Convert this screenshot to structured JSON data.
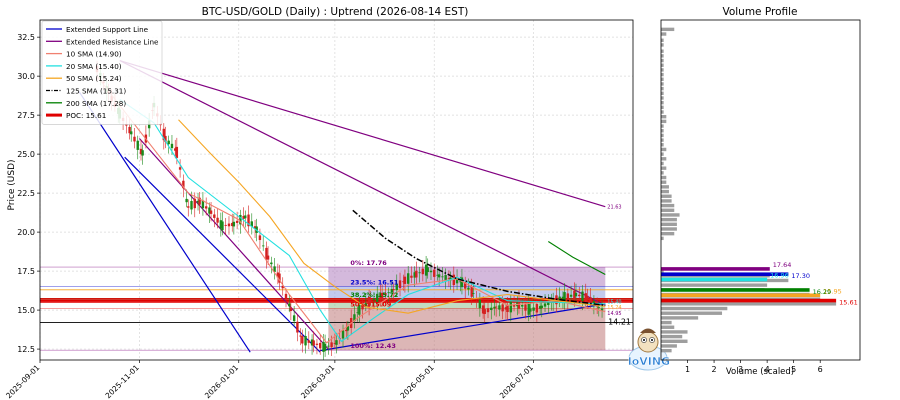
{
  "chart_data": [
    {
      "type": "line",
      "title": "BTC-USD/GOLD (Daily) : Uptrend (2026-08-14 EST)",
      "ylabel": "Price (USD)",
      "xlim": [
        "2025-09-01",
        "2026-08-31"
      ],
      "ylim": [
        11.8,
        33.6
      ],
      "yticks": [
        12.5,
        15.0,
        17.5,
        20.0,
        22.5,
        25.0,
        27.5,
        30.0,
        32.5
      ],
      "yticklabels": [
        "12.5",
        "15.0",
        "17.5",
        "20.0",
        "22.5",
        "25.0",
        "27.5",
        "30.0",
        "32.5"
      ],
      "xticks": [
        "2025-09-01",
        "2025-11-01",
        "2026-01-01",
        "2026-03-01",
        "2026-05-01",
        "2026-07-01"
      ],
      "grid": true,
      "legend_location": "upper-left",
      "legend": [
        {
          "label": "Extended Support Line",
          "color": "#0000cc",
          "style": "solid"
        },
        {
          "label": "Extended Resistance Line",
          "color": "#800080",
          "style": "solid"
        },
        {
          "label": "10 SMA (14.90)",
          "color": "#f08070",
          "style": "solid"
        },
        {
          "label": "20 SMA (15.40)",
          "color": "#22e0e0",
          "style": "solid"
        },
        {
          "label": "50 SMA (15.24)",
          "color": "#f5a623",
          "style": "solid"
        },
        {
          "label": "125 SMA (15.31)",
          "color": "#000000",
          "style": "dashdot"
        },
        {
          "label": "200 SMA (17.28)",
          "color": "#008000",
          "style": "solid"
        },
        {
          "label": "POC: 15.61",
          "color": "#e00000",
          "style": "solid-thick"
        }
      ],
      "series": [
        {
          "role": "close",
          "x": [
            "2025-10-06",
            "2025-10-13",
            "2025-10-20",
            "2025-10-27",
            "2025-11-03",
            "2025-11-10",
            "2025-11-17",
            "2025-11-24",
            "2025-12-01",
            "2025-12-08",
            "2025-12-15",
            "2025-12-22",
            "2025-12-29",
            "2026-01-05",
            "2026-01-12",
            "2026-01-19",
            "2026-01-26",
            "2026-02-02",
            "2026-02-09",
            "2026-02-16",
            "2026-02-23",
            "2026-03-02",
            "2026-03-09",
            "2026-03-16",
            "2026-03-23",
            "2026-03-30",
            "2026-04-06",
            "2026-04-13",
            "2026-04-20",
            "2026-04-27",
            "2026-05-04",
            "2026-05-11",
            "2026-05-18",
            "2026-05-25",
            "2026-06-01",
            "2026-06-08",
            "2026-06-15",
            "2026-06-22",
            "2026-06-29",
            "2026-07-06",
            "2026-07-13",
            "2026-07-20",
            "2026-07-27",
            "2026-08-03",
            "2026-08-10",
            "2026-08-14"
          ],
          "y": [
            30.5,
            29.0,
            27.6,
            26.4,
            25.0,
            28.2,
            26.0,
            25.2,
            21.6,
            22.0,
            21.3,
            20.4,
            20.5,
            21.0,
            20.2,
            18.4,
            17.1,
            15.1,
            13.1,
            12.9,
            12.6,
            12.9,
            13.8,
            15.0,
            15.6,
            15.9,
            16.3,
            16.9,
            17.3,
            17.6,
            17.2,
            17.0,
            16.8,
            16.1,
            14.9,
            15.2,
            15.1,
            15.4,
            15.0,
            15.2,
            15.6,
            15.8,
            16.0,
            15.8,
            15.2,
            14.9
          ]
        },
        {
          "name": "10 SMA (14.90)",
          "x": [
            "2025-10-06",
            "2025-11-01",
            "2025-12-01",
            "2026-01-01",
            "2026-02-01",
            "2026-02-24",
            "2026-03-15",
            "2026-04-15",
            "2026-05-15",
            "2026-06-15",
            "2026-07-15",
            "2026-08-14"
          ],
          "y": [
            30.0,
            26.5,
            22.5,
            20.8,
            16.0,
            12.9,
            14.5,
            16.6,
            17.0,
            15.3,
            15.6,
            14.9
          ]
        },
        {
          "name": "20 SMA (15.40)",
          "x": [
            "2025-10-20",
            "2025-11-10",
            "2025-12-01",
            "2026-01-01",
            "2026-02-01",
            "2026-02-20",
            "2026-03-05",
            "2026-03-25",
            "2026-04-15",
            "2026-05-15",
            "2026-06-15",
            "2026-07-15",
            "2026-08-14"
          ],
          "y": [
            28.5,
            27.0,
            23.5,
            21.0,
            18.5,
            15.0,
            13.0,
            14.5,
            16.0,
            17.1,
            15.6,
            15.5,
            15.4
          ]
        },
        {
          "name": "50 SMA (15.24)",
          "x": [
            "2025-11-25",
            "2025-12-15",
            "2026-01-01",
            "2026-01-20",
            "2026-02-10",
            "2026-03-01",
            "2026-03-20",
            "2026-04-15",
            "2026-05-15",
            "2026-06-15",
            "2026-07-15",
            "2026-08-14"
          ],
          "y": [
            27.2,
            25.0,
            23.2,
            21.0,
            18.0,
            16.5,
            15.2,
            14.8,
            15.6,
            16.0,
            15.6,
            15.24
          ]
        },
        {
          "name": "125 SMA (15.31)",
          "x": [
            "2026-03-12",
            "2026-04-01",
            "2026-04-20",
            "2026-05-15",
            "2026-06-15",
            "2026-07-15",
            "2026-08-14"
          ],
          "y": [
            21.4,
            19.6,
            18.3,
            17.0,
            16.2,
            15.7,
            15.31
          ]
        },
        {
          "name": "200 SMA (17.28)",
          "x": [
            "2026-07-10",
            "2026-07-25",
            "2026-08-14"
          ],
          "y": [
            19.4,
            18.4,
            17.28
          ]
        },
        {
          "name": "Extended Support Line",
          "x": [
            "2025-09-25",
            "2026-01-08"
          ],
          "y": [
            29.0,
            12.3
          ]
        },
        {
          "name": "Extended Support Line",
          "x": [
            "2025-10-23",
            "2026-02-20"
          ],
          "y": [
            24.8,
            12.3
          ]
        },
        {
          "name": "Extended Support Line",
          "x": [
            "2026-02-20",
            "2026-08-14"
          ],
          "y": [
            12.4,
            15.4
          ]
        },
        {
          "name": "Extended Resistance Line",
          "x": [
            "2025-10-20",
            "2026-08-14"
          ],
          "y": [
            31.0,
            21.63
          ]
        },
        {
          "name": "Extended Resistance Line",
          "x": [
            "2025-10-20",
            "2026-08-14"
          ],
          "y": [
            31.0,
            15.3
          ]
        },
        {
          "name": "Extended Resistance Line",
          "x": [
            "2025-11-01",
            "2026-02-25"
          ],
          "y": [
            26.0,
            12.5
          ]
        }
      ],
      "fib_levels": [
        {
          "label": "0%: 17.76",
          "value": 17.76,
          "color": "#800080"
        },
        {
          "label": "23.5%: 16.51",
          "value": 16.51,
          "color": "#0000cc"
        },
        {
          "label": "38.2%: 15.72",
          "value": 15.72,
          "color": "#008000"
        },
        {
          "label": "50%: 15.09",
          "value": 15.09,
          "color": "#e00000"
        },
        {
          "label": "100%: 12.43",
          "value": 12.43,
          "color": "#800080"
        }
      ],
      "fib_range_x": [
        "2026-02-25",
        "2026-08-14"
      ],
      "poc": 15.61,
      "hlines": [
        {
          "value": 14.21,
          "color": "#000000"
        },
        {
          "value": 16.3,
          "color": "#f5a623"
        },
        {
          "value": 15.5,
          "color": "#e00000"
        },
        {
          "value": 15.75,
          "color": "#e00000"
        }
      ],
      "annotations": [
        {
          "text": "21.63",
          "x": "2026-08-14",
          "y": 21.63,
          "color": "#800080"
        },
        {
          "text": "15.40",
          "x": "2026-08-14",
          "y": 15.55,
          "color": "#22e0e0"
        },
        {
          "text": "15.24",
          "x": "2026-08-14",
          "y": 15.2,
          "color": "#f5a623"
        },
        {
          "text": "14.95",
          "x": "2026-08-14",
          "y": 14.8,
          "color": "#800080"
        },
        {
          "text": "14.21",
          "x": "2026-08-31",
          "y": 14.21,
          "color": "#000000"
        }
      ]
    },
    {
      "type": "bar",
      "orientation": "horizontal",
      "title": "Volume Profile",
      "xlabel": "Volume (scaled)",
      "xlim": [
        0,
        7.5
      ],
      "xticks": [
        1,
        2,
        3,
        4,
        5,
        6
      ],
      "ylim": [
        11.8,
        33.6
      ],
      "bins_y": [
        12.4,
        12.7,
        13.0,
        13.3,
        13.6,
        13.9,
        14.2,
        14.5,
        14.8,
        15.1,
        15.4,
        15.7,
        16.0,
        16.3,
        16.6,
        16.9,
        17.2,
        17.5,
        19.6,
        19.9,
        20.2,
        20.5,
        20.8,
        21.1,
        21.4,
        21.7,
        22.0,
        22.3,
        22.6,
        22.9,
        23.2,
        23.5,
        23.8,
        24.1,
        24.4,
        24.7,
        25.0,
        25.3,
        25.6,
        25.9,
        26.2,
        26.5,
        26.8,
        27.1,
        27.4,
        27.7,
        28.0,
        28.3,
        28.6,
        28.9,
        29.2,
        29.5,
        29.8,
        30.1,
        30.4,
        30.7,
        31.0,
        31.3,
        31.6,
        32.0,
        32.3,
        32.7,
        33.0
      ],
      "values": [
        0.4,
        0.6,
        1.0,
        0.8,
        1.0,
        0.5,
        0.4,
        1.4,
        2.3,
        2.5,
        6.6,
        6.0,
        5.6,
        3.9,
        4.0,
        4.8,
        4.1,
        0.1,
        0.1,
        0.5,
        0.6,
        0.6,
        0.6,
        0.7,
        0.5,
        0.5,
        0.4,
        0.4,
        0.3,
        0.3,
        0.2,
        0.2,
        0.1,
        0.2,
        0.1,
        0.2,
        0.1,
        0.2,
        0.1,
        0.1,
        0.1,
        0.1,
        0.1,
        0.2,
        0.2,
        0.1,
        0.1,
        0.1,
        0.1,
        0.1,
        0.1,
        0.1,
        0.1,
        0.1,
        0.1,
        0.1,
        0.1,
        0.1,
        0.1,
        0.1,
        0.1,
        0.2,
        0.5
      ],
      "highlight_bars": [
        {
          "y": 15.61,
          "value": 6.6,
          "label": "15.61",
          "color": "#e00000"
        },
        {
          "y": 15.95,
          "value": 6.0,
          "label": "15.95",
          "color": "#f5a623"
        },
        {
          "y": 16.29,
          "value": 5.6,
          "label": "16.29",
          "color": "#008000"
        },
        {
          "y": 16.96,
          "value": 4.0,
          "label": "16.96",
          "color": "#22e0e0"
        },
        {
          "y": 17.3,
          "value": 4.8,
          "label": "17.30",
          "color": "#0000cc"
        },
        {
          "y": 17.64,
          "value": 4.1,
          "label": "17.64",
          "color": "#800080"
        }
      ]
    }
  ]
}
